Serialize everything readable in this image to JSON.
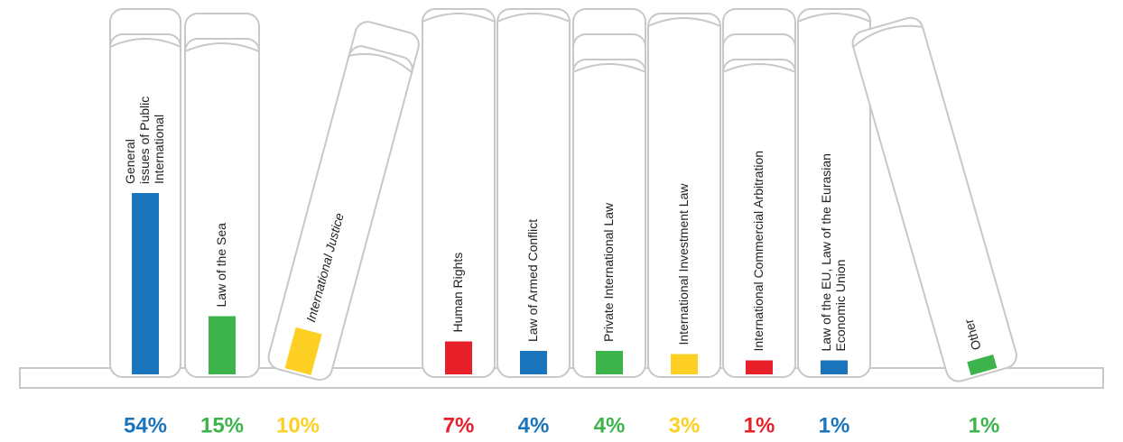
{
  "chart_data": {
    "type": "bar",
    "categories": [
      [
        "General",
        "issues of Public",
        "International"
      ],
      "Law of the Sea",
      "International Justice",
      "Human Rights",
      "Law of Armed Conflict",
      "Private International Law",
      "International Investment Law",
      "International Commercial Arbitration",
      [
        "Law of the EU, Law of the Eurasian",
        "Economic Union"
      ],
      "Other"
    ],
    "values": [
      54,
      15,
      10,
      7,
      4,
      4,
      3,
      1,
      1,
      1
    ],
    "value_labels": [
      "54%",
      "15%",
      "10%",
      "7%",
      "4%",
      "4%",
      "3%",
      "1%",
      "1%",
      "1%"
    ],
    "colors": [
      "#1a75bc",
      "#3cb44b",
      "#fdd023",
      "#e8202a",
      "#1a75bc",
      "#3cb44b",
      "#fdd023",
      "#e8202a",
      "#1a75bc",
      "#3cb44b"
    ]
  }
}
